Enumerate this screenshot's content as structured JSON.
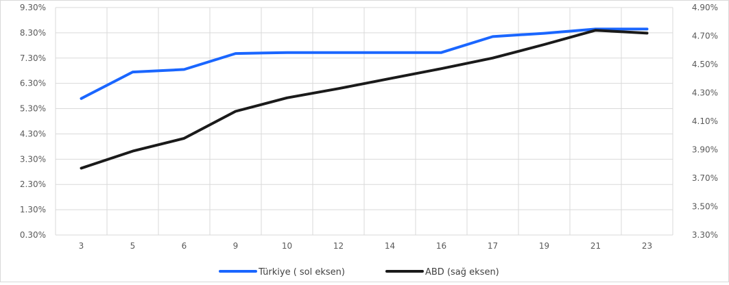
{
  "chart_data": {
    "type": "line",
    "title": "",
    "categories": [
      "3",
      "5",
      "6",
      "9",
      "10",
      "12",
      "14",
      "16",
      "17",
      "19",
      "21",
      "23"
    ],
    "left_axis": {
      "ticks": [
        "0.30%",
        "1.30%",
        "2.30%",
        "3.30%",
        "4.30%",
        "5.30%",
        "6.30%",
        "7.30%",
        "8.30%",
        "9.30%"
      ],
      "min": 0.3,
      "max": 9.3
    },
    "right_axis": {
      "ticks": [
        "3.30%",
        "3.50%",
        "3.70%",
        "3.90%",
        "4.10%",
        "4.30%",
        "4.50%",
        "4.70%",
        "4.90%"
      ],
      "min": 3.3,
      "max": 4.9
    },
    "grid": true,
    "legend_position": "bottom",
    "series": [
      {
        "name": "Türkiye ( sol eksen)",
        "axis": "left",
        "color": "#1a66ff",
        "values": [
          5.7,
          6.75,
          6.85,
          7.48,
          7.52,
          7.52,
          7.52,
          7.52,
          8.15,
          8.28,
          8.45,
          8.45
        ]
      },
      {
        "name": "ABD (sağ eksen)",
        "axis": "right",
        "color": "#1a1a1a",
        "values": [
          3.77,
          3.89,
          3.98,
          4.17,
          4.265,
          4.33,
          4.4,
          4.47,
          4.545,
          4.64,
          4.74,
          4.72
        ]
      }
    ]
  }
}
